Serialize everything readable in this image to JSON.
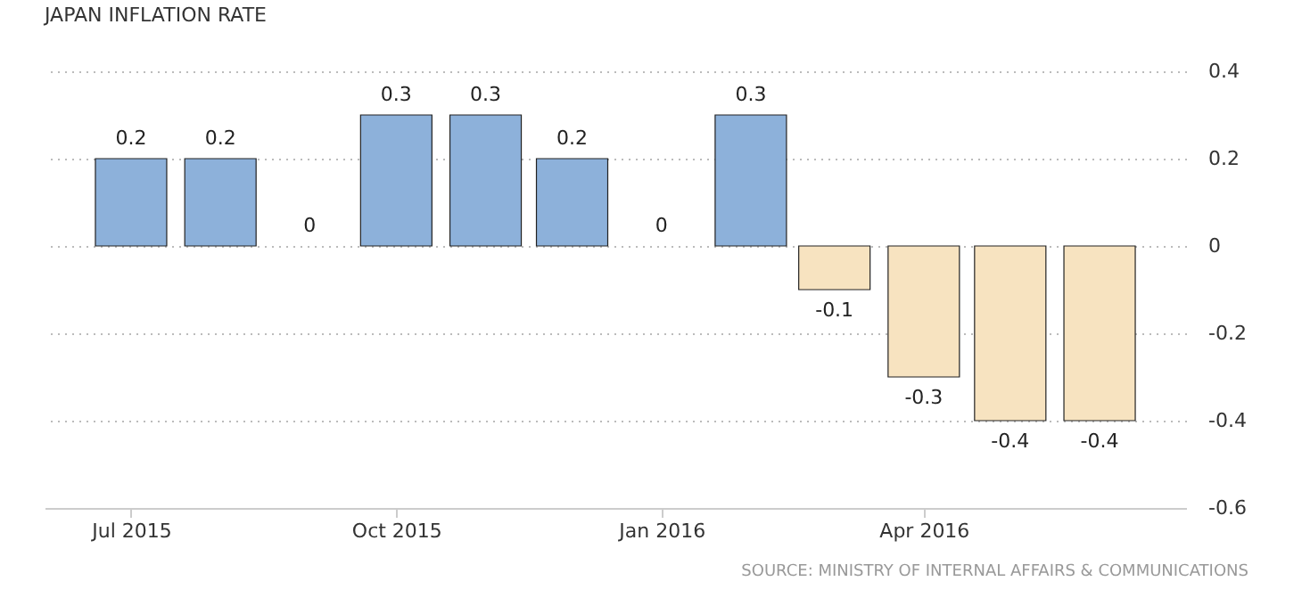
{
  "chart_data": {
    "type": "bar",
    "title": "JAPAN INFLATION RATE",
    "x": [
      "2015-07",
      "2015-08",
      "2015-09",
      "2015-10",
      "2015-11",
      "2015-12",
      "2016-01",
      "2016-02",
      "2016-03",
      "2016-04",
      "2016-05",
      "2016-06"
    ],
    "values": [
      0.2,
      0.2,
      0,
      0.3,
      0.3,
      0.2,
      0,
      0.3,
      -0.1,
      -0.3,
      -0.4,
      -0.4
    ],
    "colors": [
      "#8db1da",
      "#8db1da",
      "#8db1da",
      "#8db1da",
      "#8db1da",
      "#8db1da",
      "#8db1da",
      "#8db1da",
      "#f7e3c0",
      "#f7e3c0",
      "#f7e3c0",
      "#f7e3c0"
    ],
    "data_labels": true,
    "xlim": [
      "2015-06-01",
      "2016-07-01"
    ],
    "xticks": [
      {
        "value": "2015-07",
        "label": "Jul 2015"
      },
      {
        "value": "2015-10",
        "label": "Oct 2015"
      },
      {
        "value": "2016-01",
        "label": "Jan 2016"
      },
      {
        "value": "2016-04",
        "label": "Apr 2016"
      }
    ],
    "ylim": [
      -0.6,
      0.4
    ],
    "yticks": [
      -0.6,
      -0.4,
      -0.2,
      0,
      0.2,
      0.4
    ],
    "grid": "y",
    "annotations": [
      "SOURCE: MINISTRY OF INTERNAL AFFAIRS & COMMUNICATIONS"
    ]
  }
}
